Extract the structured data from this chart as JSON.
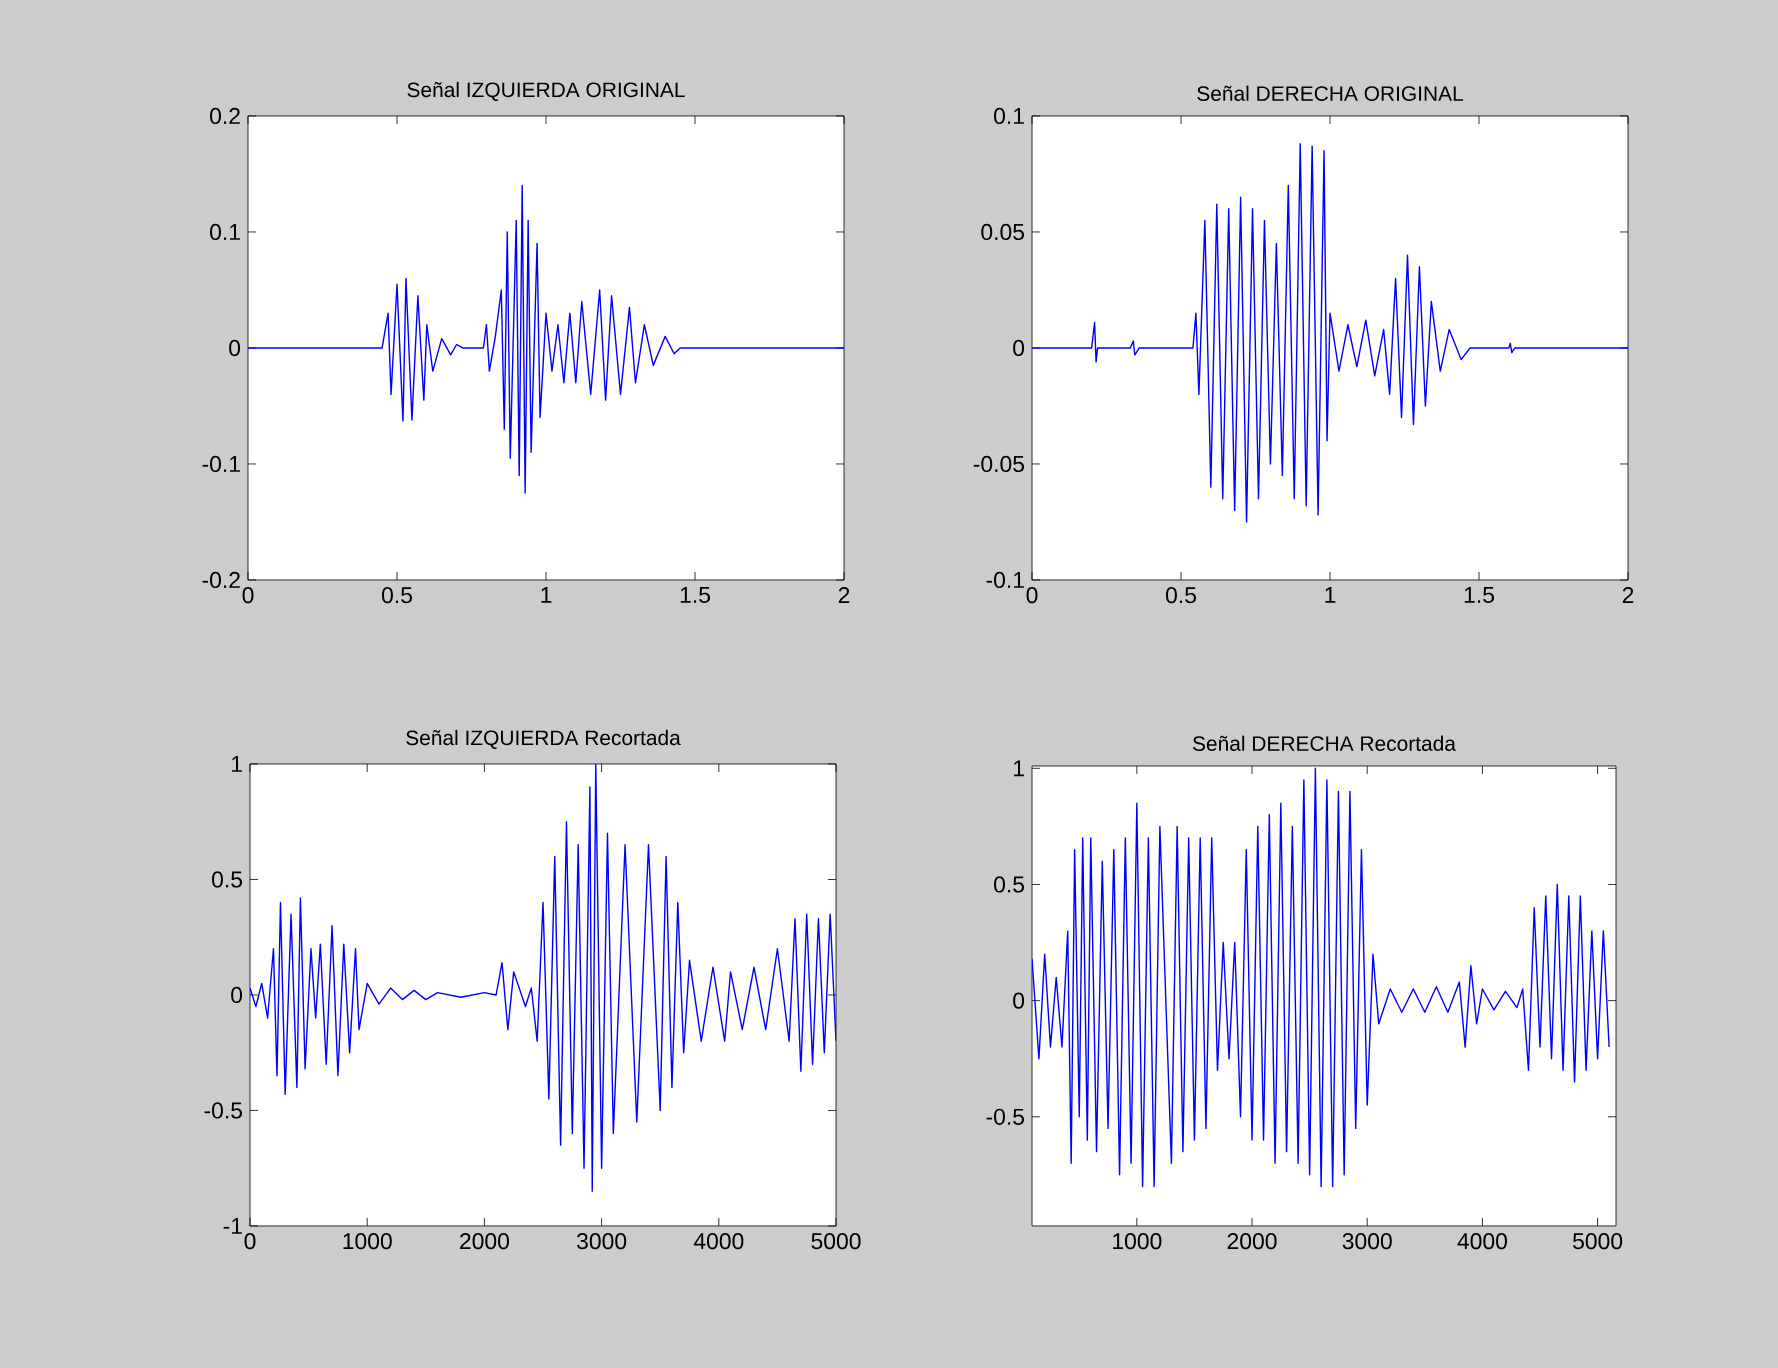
{
  "chart_data": [
    {
      "type": "line",
      "title": "Señal IZQUIERDA ORIGINAL",
      "xlim": [
        0,
        2
      ],
      "ylim": [
        -0.2,
        0.2
      ],
      "xticks": [
        0,
        0.5,
        1,
        1.5,
        2
      ],
      "yticks": [
        -0.2,
        -0.1,
        0,
        0.1,
        0.2
      ],
      "series": [
        {
          "color": "#0000ff",
          "x": [
            0,
            0.45,
            0.47,
            0.48,
            0.5,
            0.52,
            0.53,
            0.55,
            0.57,
            0.59,
            0.6,
            0.62,
            0.65,
            0.68,
            0.7,
            0.72,
            0.79,
            0.8,
            0.81,
            0.83,
            0.85,
            0.86,
            0.87,
            0.88,
            0.9,
            0.91,
            0.92,
            0.93,
            0.94,
            0.95,
            0.97,
            0.98,
            1.0,
            1.02,
            1.04,
            1.06,
            1.08,
            1.1,
            1.12,
            1.15,
            1.18,
            1.2,
            1.22,
            1.25,
            1.28,
            1.3,
            1.33,
            1.36,
            1.4,
            1.43,
            1.45,
            2
          ],
          "values": [
            0,
            0,
            0.03,
            -0.04,
            0.055,
            -0.063,
            0.06,
            -0.062,
            0.045,
            -0.045,
            0.02,
            -0.02,
            0.008,
            -0.006,
            0.003,
            0,
            0,
            0.02,
            -0.02,
            0.01,
            0.05,
            -0.07,
            0.1,
            -0.095,
            0.11,
            -0.11,
            0.14,
            -0.125,
            0.11,
            -0.09,
            0.09,
            -0.06,
            0.03,
            -0.02,
            0.02,
            -0.03,
            0.03,
            -0.03,
            0.04,
            -0.04,
            0.05,
            -0.045,
            0.045,
            -0.04,
            0.035,
            -0.03,
            0.02,
            -0.015,
            0.01,
            -0.005,
            0,
            0
          ]
        }
      ]
    },
    {
      "type": "line",
      "title": "Señal DERECHA ORIGINAL",
      "xlim": [
        0,
        2
      ],
      "ylim": [
        -0.1,
        0.1
      ],
      "xticks": [
        0,
        0.5,
        1,
        1.5,
        2
      ],
      "yticks": [
        -0.1,
        -0.05,
        0,
        0.05,
        0.1
      ],
      "series": [
        {
          "color": "#0000ff",
          "x": [
            0,
            0.2,
            0.21,
            0.215,
            0.22,
            0.33,
            0.34,
            0.345,
            0.36,
            0.54,
            0.55,
            0.56,
            0.58,
            0.6,
            0.62,
            0.64,
            0.66,
            0.68,
            0.7,
            0.72,
            0.74,
            0.76,
            0.78,
            0.8,
            0.82,
            0.84,
            0.86,
            0.88,
            0.9,
            0.92,
            0.94,
            0.96,
            0.98,
            0.99,
            1.0,
            1.03,
            1.06,
            1.09,
            1.12,
            1.15,
            1.18,
            1.2,
            1.22,
            1.24,
            1.26,
            1.28,
            1.3,
            1.32,
            1.34,
            1.37,
            1.4,
            1.44,
            1.47,
            1.6,
            1.605,
            1.61,
            1.62,
            2
          ],
          "values": [
            0,
            0,
            0.011,
            -0.006,
            0,
            0,
            0.003,
            -0.003,
            0,
            0,
            0.015,
            -0.02,
            0.055,
            -0.06,
            0.062,
            -0.065,
            0.06,
            -0.07,
            0.065,
            -0.075,
            0.06,
            -0.065,
            0.055,
            -0.05,
            0.045,
            -0.055,
            0.07,
            -0.065,
            0.088,
            -0.068,
            0.087,
            -0.072,
            0.085,
            -0.04,
            0.015,
            -0.01,
            0.01,
            -0.008,
            0.012,
            -0.012,
            0.008,
            -0.02,
            0.03,
            -0.03,
            0.04,
            -0.033,
            0.035,
            -0.025,
            0.02,
            -0.01,
            0.008,
            -0.005,
            0,
            0,
            0.002,
            -0.002,
            0,
            0
          ]
        }
      ]
    },
    {
      "type": "line",
      "title": "Señal IZQUIERDA Recortada",
      "xlim": [
        0,
        5000
      ],
      "ylim": [
        -1,
        1
      ],
      "xticks": [
        0,
        1000,
        2000,
        3000,
        4000,
        5000
      ],
      "yticks": [
        -1,
        -0.5,
        0,
        0.5,
        1
      ],
      "series": [
        {
          "color": "#0000ff",
          "x": [
            0,
            50,
            100,
            150,
            200,
            230,
            260,
            300,
            350,
            400,
            430,
            470,
            520,
            560,
            600,
            650,
            700,
            750,
            800,
            850,
            900,
            930,
            1000,
            1100,
            1200,
            1300,
            1400,
            1500,
            1600,
            1800,
            2000,
            2100,
            2150,
            2200,
            2250,
            2350,
            2400,
            2450,
            2500,
            2550,
            2600,
            2650,
            2700,
            2750,
            2800,
            2850,
            2900,
            2920,
            2950,
            3000,
            3050,
            3100,
            3200,
            3300,
            3400,
            3500,
            3550,
            3600,
            3650,
            3700,
            3750,
            3850,
            3950,
            4050,
            4100,
            4200,
            4300,
            4400,
            4500,
            4600,
            4650,
            4700,
            4750,
            4800,
            4850,
            4900,
            4950,
            5000
          ],
          "values": [
            0.03,
            -0.05,
            0.05,
            -0.1,
            0.2,
            -0.35,
            0.4,
            -0.43,
            0.35,
            -0.4,
            0.42,
            -0.32,
            0.2,
            -0.1,
            0.22,
            -0.3,
            0.3,
            -0.35,
            0.22,
            -0.25,
            0.2,
            -0.15,
            0.05,
            -0.04,
            0.03,
            -0.02,
            0.02,
            -0.02,
            0.01,
            -0.01,
            0.01,
            0,
            0.14,
            -0.15,
            0.1,
            -0.05,
            0.03,
            -0.2,
            0.4,
            -0.45,
            0.6,
            -0.65,
            0.75,
            -0.6,
            0.65,
            -0.75,
            0.9,
            -0.85,
            1.0,
            -0.75,
            0.7,
            -0.6,
            0.65,
            -0.55,
            0.65,
            -0.5,
            0.6,
            -0.4,
            0.4,
            -0.25,
            0.15,
            -0.2,
            0.12,
            -0.2,
            0.1,
            -0.15,
            0.12,
            -0.15,
            0.2,
            -0.2,
            0.33,
            -0.33,
            0.35,
            -0.3,
            0.33,
            -0.25,
            0.35,
            -0.2
          ]
        }
      ]
    },
    {
      "type": "line",
      "title": "Señal DERECHA Recortada",
      "xlim": [
        90,
        5160
      ],
      "ylim": [
        -0.97,
        1.01
      ],
      "xticks": [
        1000,
        2000,
        3000,
        4000,
        5000
      ],
      "yticks": [
        -0.5,
        0,
        0.5,
        1
      ],
      "series": [
        {
          "color": "#0000ff",
          "x": [
            90,
            150,
            200,
            250,
            300,
            350,
            400,
            430,
            460,
            500,
            530,
            570,
            600,
            650,
            700,
            750,
            800,
            850,
            900,
            950,
            1000,
            1050,
            1100,
            1150,
            1200,
            1300,
            1350,
            1400,
            1450,
            1500,
            1550,
            1600,
            1650,
            1700,
            1750,
            1800,
            1850,
            1900,
            1950,
            2000,
            2050,
            2100,
            2150,
            2200,
            2250,
            2300,
            2350,
            2400,
            2450,
            2500,
            2550,
            2600,
            2650,
            2700,
            2750,
            2800,
            2850,
            2900,
            2950,
            3000,
            3050,
            3100,
            3200,
            3300,
            3400,
            3500,
            3600,
            3700,
            3800,
            3850,
            3900,
            3950,
            4000,
            4100,
            4200,
            4300,
            4350,
            4400,
            4450,
            4500,
            4550,
            4600,
            4650,
            4700,
            4750,
            4800,
            4850,
            4900,
            4950,
            5000,
            5050,
            5100
          ],
          "values": [
            0.18,
            -0.25,
            0.2,
            -0.2,
            0.1,
            -0.2,
            0.3,
            -0.7,
            0.65,
            -0.5,
            0.7,
            -0.6,
            0.7,
            -0.65,
            0.6,
            -0.55,
            0.65,
            -0.75,
            0.7,
            -0.7,
            0.85,
            -0.8,
            0.7,
            -0.8,
            0.75,
            -0.7,
            0.75,
            -0.65,
            0.7,
            -0.6,
            0.7,
            -0.55,
            0.7,
            -0.3,
            0.25,
            -0.25,
            0.25,
            -0.5,
            0.65,
            -0.6,
            0.75,
            -0.6,
            0.8,
            -0.7,
            0.85,
            -0.65,
            0.75,
            -0.7,
            0.95,
            -0.75,
            1.0,
            -0.8,
            0.95,
            -0.8,
            0.9,
            -0.75,
            0.9,
            -0.55,
            0.65,
            -0.45,
            0.2,
            -0.1,
            0.05,
            -0.05,
            0.05,
            -0.05,
            0.06,
            -0.05,
            0.08,
            -0.2,
            0.15,
            -0.1,
            0.05,
            -0.04,
            0.04,
            -0.03,
            0.05,
            -0.3,
            0.4,
            -0.2,
            0.45,
            -0.25,
            0.5,
            -0.3,
            0.45,
            -0.35,
            0.45,
            -0.3,
            0.3,
            -0.25,
            0.3,
            -0.2
          ]
        }
      ]
    }
  ]
}
